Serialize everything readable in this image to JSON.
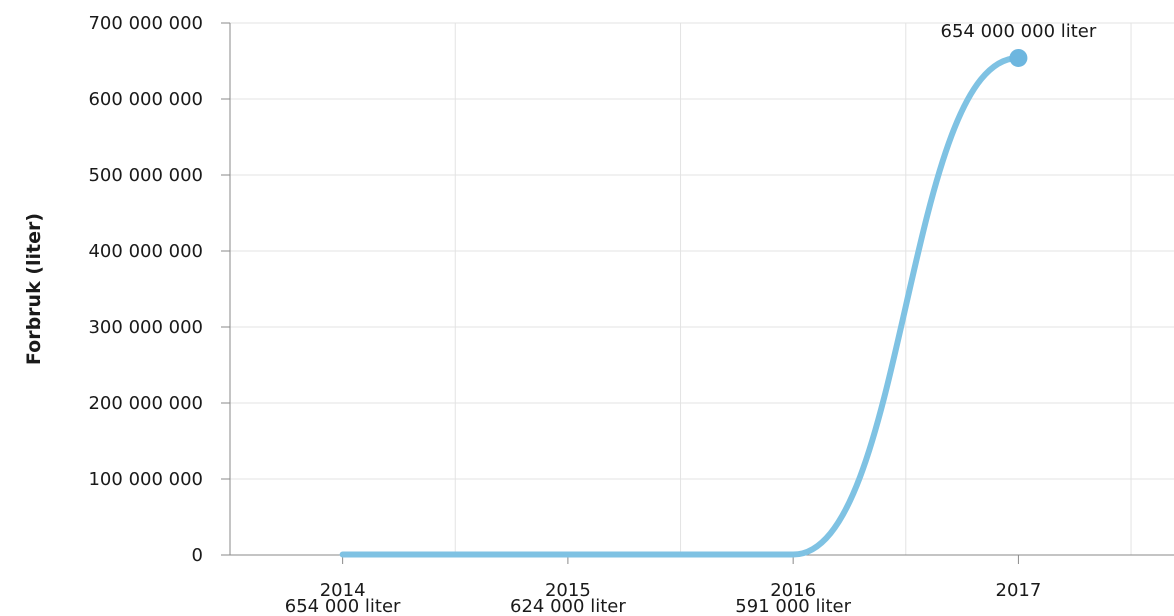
{
  "chart_data": {
    "type": "line",
    "title": "",
    "xlabel": "",
    "ylabel": "Forbruk (liter)",
    "categories": [
      "2014",
      "2015",
      "2016",
      "2017"
    ],
    "series": [
      {
        "values": [
          654000,
          624000,
          591000,
          654000000
        ],
        "labels": [
          "654 000 liter",
          "624 000 liter",
          "591 000 liter",
          "654 000 000 liter"
        ]
      }
    ],
    "ylim": [
      0,
      700000000
    ],
    "yticks": [
      "0",
      "100 000 000",
      "200 000 000",
      "300 000 000",
      "400 000 000",
      "500 000 000",
      "600 000 000",
      "700 000 000"
    ],
    "grid": true,
    "line_color": "#7fc2e3",
    "point_color": "#6db6df"
  }
}
